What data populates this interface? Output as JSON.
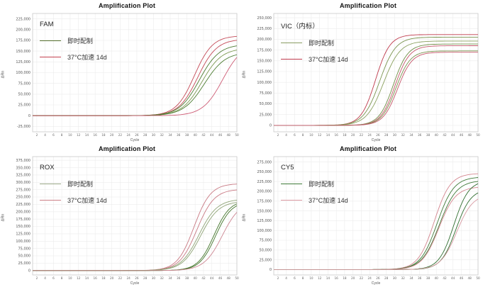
{
  "window": {
    "background": "#ffffff"
  },
  "chart_data": [
    {
      "type": "line",
      "title": "Amplification Plot",
      "channel": "FAM",
      "xlabel": "Cycle",
      "ylabel": "ΔRn",
      "xlim": [
        1,
        50
      ],
      "ylim": [
        -37500,
        237500
      ],
      "x_ticks": [
        2,
        4,
        6,
        8,
        10,
        12,
        14,
        16,
        18,
        20,
        22,
        24,
        26,
        28,
        30,
        32,
        34,
        36,
        38,
        40,
        42,
        44,
        46,
        48,
        50
      ],
      "y_ticks": [
        -25000,
        0,
        25000,
        50000,
        75000,
        100000,
        125000,
        150000,
        175000,
        200000,
        225000
      ],
      "grid": true,
      "legend_position": "top-left",
      "legend": [
        {
          "label": "即时配制",
          "color": "#55702e"
        },
        {
          "label": "37°C加速 14d",
          "color": "#c4414f"
        }
      ],
      "series": [
        {
          "name": "37°C加速 14d",
          "color": "#c44a57",
          "sigmoid": {
            "mid": 39.8,
            "top": 186000,
            "k": 0.46
          }
        },
        {
          "name": "37°C加速 14d",
          "color": "#c44a57",
          "sigmoid": {
            "mid": 40.6,
            "top": 178000,
            "k": 0.44
          }
        },
        {
          "name": "即时配制",
          "color": "#4c7c31",
          "sigmoid": {
            "mid": 41.0,
            "top": 166000,
            "k": 0.42
          }
        },
        {
          "name": "即时配制",
          "color": "#7d9a52",
          "sigmoid": {
            "mid": 41.6,
            "top": 157000,
            "k": 0.42
          }
        },
        {
          "name": "即时配制",
          "color": "#4c7c31",
          "sigmoid": {
            "mid": 42.2,
            "top": 148000,
            "k": 0.4
          }
        },
        {
          "name": "37°C加速 14d",
          "color": "#cd5b74",
          "sigmoid": {
            "mid": 46.6,
            "top": 168000,
            "k": 0.42
          }
        }
      ]
    },
    {
      "type": "line",
      "title": "Amplification Plot",
      "channel": "VIC（内标）",
      "xlabel": "Cycle",
      "ylabel": "ΔRn",
      "xlim": [
        1,
        50
      ],
      "ylim": [
        -15000,
        260000
      ],
      "x_ticks": [
        2,
        4,
        6,
        8,
        10,
        12,
        14,
        16,
        18,
        20,
        22,
        24,
        26,
        28,
        30,
        32,
        34,
        36,
        38,
        40,
        42,
        44,
        46,
        48,
        50
      ],
      "y_ticks": [
        0,
        25000,
        50000,
        75000,
        100000,
        125000,
        150000,
        175000,
        200000,
        225000,
        250000
      ],
      "grid": true,
      "legend_position": "top-left",
      "legend": [
        {
          "label": "即时配制",
          "color": "#8a9c63"
        },
        {
          "label": "37°C加速 14d",
          "color": "#bf3a4c"
        }
      ],
      "series": [
        {
          "name": "37°C加速 14d",
          "color": "#bf3a4c",
          "sigmoid": {
            "mid": 25.4,
            "top": 211000,
            "k": 0.58
          }
        },
        {
          "name": "即时配制",
          "color": "#79934e",
          "sigmoid": {
            "mid": 26.4,
            "top": 205000,
            "k": 0.52
          }
        },
        {
          "name": "即时配制",
          "color": "#8aa05e",
          "sigmoid": {
            "mid": 27.3,
            "top": 196000,
            "k": 0.5
          }
        },
        {
          "name": "即时配制",
          "color": "#6f8d46",
          "sigmoid": {
            "mid": 29.7,
            "top": 189000,
            "k": 0.58
          }
        },
        {
          "name": "37°C加速 14d",
          "color": "#c5566a",
          "sigmoid": {
            "mid": 30.1,
            "top": 185000,
            "k": 0.58
          }
        },
        {
          "name": "即时配制",
          "color": "#79934e",
          "sigmoid": {
            "mid": 30.3,
            "top": 173000,
            "k": 0.58
          }
        },
        {
          "name": "37°C加速 14d",
          "color": "#c5566a",
          "sigmoid": {
            "mid": 30.7,
            "top": 170000,
            "k": 0.58
          }
        }
      ]
    },
    {
      "type": "line",
      "title": "Amplification Plot",
      "channel": "ROX",
      "xlabel": "Cycle",
      "ylabel": "ΔRn",
      "xlim": [
        1,
        50
      ],
      "ylim": [
        -15000,
        387500
      ],
      "x_ticks": [
        2,
        4,
        6,
        8,
        10,
        12,
        14,
        16,
        18,
        20,
        22,
        24,
        26,
        28,
        30,
        32,
        34,
        36,
        38,
        40,
        42,
        44,
        46,
        48,
        50
      ],
      "y_ticks": [
        0,
        25000,
        50000,
        75000,
        100000,
        125000,
        150000,
        175000,
        200000,
        225000,
        250000,
        275000,
        300000,
        325000,
        350000,
        375000
      ],
      "grid": true,
      "legend_position": "top-left",
      "legend": [
        {
          "label": "即时配制",
          "color": "#97a585"
        },
        {
          "label": "37°C加速 14d",
          "color": "#cd8087"
        }
      ],
      "series": [
        {
          "name": "37°C加速 14d",
          "color": "#c97983",
          "sigmoid": {
            "mid": 39.7,
            "top": 296000,
            "k": 0.5
          }
        },
        {
          "name": "37°C加速 14d",
          "color": "#c97983",
          "sigmoid": {
            "mid": 40.4,
            "top": 277000,
            "k": 0.48
          }
        },
        {
          "name": "即时配制",
          "color": "#8fa476",
          "sigmoid": {
            "mid": 40.9,
            "top": 243000,
            "k": 0.46
          }
        },
        {
          "name": "即时配制",
          "color": "#8fa476",
          "sigmoid": {
            "mid": 41.3,
            "top": 236000,
            "k": 0.46
          }
        },
        {
          "name": "即时配制",
          "color": "#44762c",
          "sigmoid": {
            "mid": 44.5,
            "top": 240000,
            "k": 0.52
          }
        },
        {
          "name": "即时配制",
          "color": "#44762c",
          "sigmoid": {
            "mid": 44.9,
            "top": 236000,
            "k": 0.52
          }
        },
        {
          "name": "37°C加速 14d",
          "color": "#cc8490",
          "sigmoid": {
            "mid": 46.5,
            "top": 238000,
            "k": 0.46
          }
        }
      ]
    },
    {
      "type": "line",
      "title": "Amplification Plot",
      "channel": "CY5",
      "xlabel": "Cycle",
      "ylabel": "ΔRn",
      "xlim": [
        1,
        50
      ],
      "ylim": [
        -13750,
        288750
      ],
      "x_ticks": [
        2,
        4,
        6,
        8,
        10,
        12,
        14,
        16,
        18,
        20,
        22,
        24,
        26,
        28,
        30,
        32,
        34,
        36,
        38,
        40,
        42,
        44,
        46,
        48,
        50
      ],
      "y_ticks": [
        0,
        25000,
        50000,
        75000,
        100000,
        125000,
        150000,
        175000,
        200000,
        225000,
        250000,
        275000
      ],
      "grid": true,
      "legend_position": "top-left",
      "legend": [
        {
          "label": "即时配制",
          "color": "#3f7a38"
        },
        {
          "label": "37°C加速 14d",
          "color": "#dd9ba3"
        }
      ],
      "series": [
        {
          "name": "37°C加速 14d",
          "color": "#d4868f",
          "sigmoid": {
            "mid": 39.5,
            "top": 246000,
            "k": 0.52
          }
        },
        {
          "name": "即时配制",
          "color": "#3f7a38",
          "sigmoid": {
            "mid": 40.2,
            "top": 237000,
            "k": 0.5
          }
        },
        {
          "name": "即时配制",
          "color": "#3f7a38",
          "sigmoid": {
            "mid": 40.7,
            "top": 228000,
            "k": 0.48
          }
        },
        {
          "name": "37°C加速 14d",
          "color": "#d4868f",
          "sigmoid": {
            "mid": 40.6,
            "top": 212000,
            "k": 0.5
          }
        },
        {
          "name": "即时配制",
          "color": "#2f6e2f",
          "sigmoid": {
            "mid": 44.2,
            "top": 228000,
            "k": 0.56
          }
        },
        {
          "name": "即时配制",
          "color": "#2f6e2f",
          "sigmoid": {
            "mid": 44.7,
            "top": 206000,
            "k": 0.56
          }
        },
        {
          "name": "37°C加速 14d",
          "color": "#d99aa2",
          "sigmoid": {
            "mid": 44.9,
            "top": 193000,
            "k": 0.52
          }
        }
      ]
    }
  ]
}
